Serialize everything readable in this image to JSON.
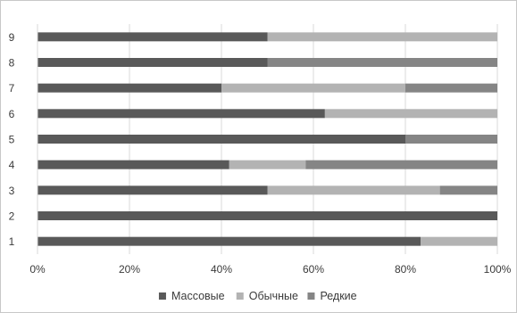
{
  "chart_data": {
    "type": "bar",
    "orientation": "horizontal",
    "stacked": "percent",
    "categories": [
      "1",
      "2",
      "3",
      "4",
      "5",
      "6",
      "7",
      "8",
      "9"
    ],
    "series": [
      {
        "name": "Массовые",
        "color": "#595959",
        "values": [
          83.3,
          100,
          50,
          41.7,
          80,
          62.5,
          40,
          50,
          50
        ]
      },
      {
        "name": "Обычные",
        "color": "#b3b3b3",
        "values": [
          16.7,
          0,
          37.5,
          16.6,
          0,
          37.5,
          40,
          0,
          50
        ]
      },
      {
        "name": "Редкие",
        "color": "#858585",
        "values": [
          0,
          0,
          12.5,
          41.7,
          20,
          0,
          20,
          50,
          0
        ]
      }
    ],
    "xlim": [
      0,
      100
    ],
    "x_ticks": [
      0,
      20,
      40,
      60,
      80,
      100
    ],
    "x_tick_labels": [
      "0%",
      "20%",
      "40%",
      "60%",
      "80%",
      "100%"
    ],
    "grid": true,
    "legend_position": "bottom",
    "title": "",
    "xlabel": "",
    "ylabel": ""
  }
}
